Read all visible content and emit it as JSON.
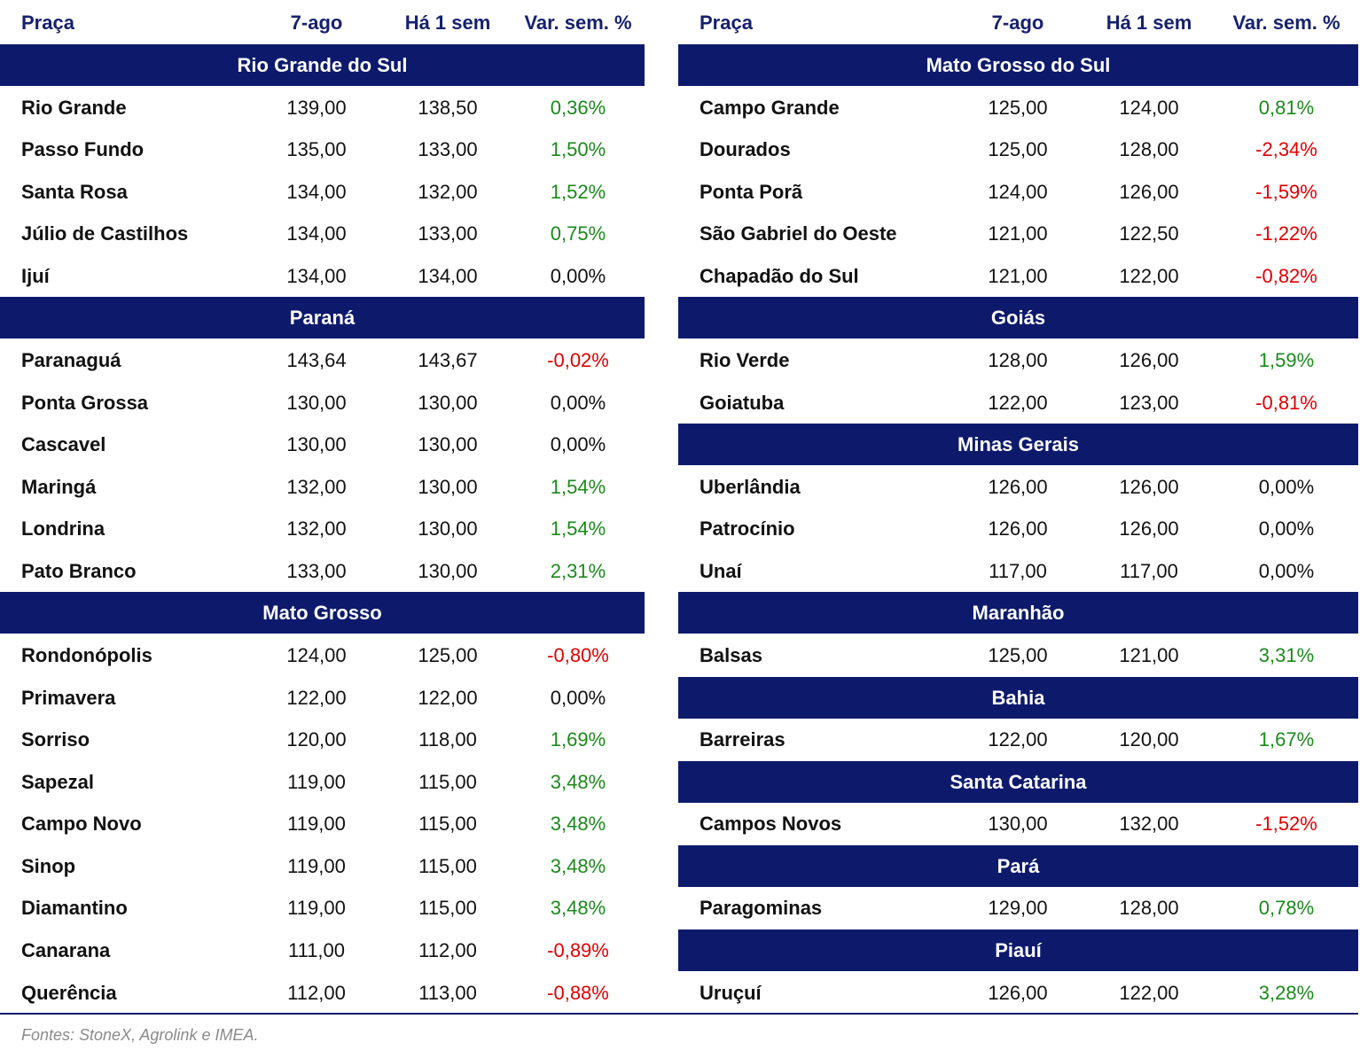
{
  "tables": [
    {
      "header": [
        "Praça",
        "7-ago",
        "Há 1 sem",
        "Var. sem. %"
      ],
      "sections": [
        {
          "title": "Rio Grande do Sul",
          "rows": [
            [
              "Rio Grande",
              "139,00",
              "138,50",
              "0,36%"
            ],
            [
              "Passo Fundo",
              "135,00",
              "133,00",
              "1,50%"
            ],
            [
              "Santa Rosa",
              "134,00",
              "132,00",
              "1,52%"
            ],
            [
              "Júlio de Castilhos",
              "134,00",
              "133,00",
              "0,75%"
            ],
            [
              "Ijuí",
              "134,00",
              "134,00",
              "0,00%"
            ]
          ]
        },
        {
          "title": "Paraná",
          "rows": [
            [
              "Paranaguá",
              "143,64",
              "143,67",
              "-0,02%"
            ],
            [
              "Ponta Grossa",
              "130,00",
              "130,00",
              "0,00%"
            ],
            [
              "Cascavel",
              "130,00",
              "130,00",
              "0,00%"
            ],
            [
              "Maringá",
              "132,00",
              "130,00",
              "1,54%"
            ],
            [
              "Londrina",
              "132,00",
              "130,00",
              "1,54%"
            ],
            [
              "Pato Branco",
              "133,00",
              "130,00",
              "2,31%"
            ]
          ]
        },
        {
          "title": "Mato Grosso",
          "rows": [
            [
              "Rondonópolis",
              "124,00",
              "125,00",
              "-0,80%"
            ],
            [
              "Primavera",
              "122,00",
              "122,00",
              "0,00%"
            ],
            [
              "Sorriso",
              "120,00",
              "118,00",
              "1,69%"
            ],
            [
              "Sapezal",
              "119,00",
              "115,00",
              "3,48%"
            ],
            [
              "Campo Novo",
              "119,00",
              "115,00",
              "3,48%"
            ],
            [
              "Sinop",
              "119,00",
              "115,00",
              "3,48%"
            ],
            [
              "Diamantino",
              "119,00",
              "115,00",
              "3,48%"
            ],
            [
              "Canarana",
              "111,00",
              "112,00",
              "-0,89%"
            ],
            [
              "Querência",
              "112,00",
              "113,00",
              "-0,88%"
            ]
          ]
        }
      ]
    },
    {
      "header": [
        "Praça",
        "7-ago",
        "Há 1 sem",
        "Var. sem. %"
      ],
      "sections": [
        {
          "title": "Mato Grosso do Sul",
          "rows": [
            [
              "Campo Grande",
              "125,00",
              "124,00",
              "0,81%"
            ],
            [
              "Dourados",
              "125,00",
              "128,00",
              "-2,34%"
            ],
            [
              "Ponta Porã",
              "124,00",
              "126,00",
              "-1,59%"
            ],
            [
              "São Gabriel do Oeste",
              "121,00",
              "122,50",
              "-1,22%"
            ],
            [
              "Chapadão do Sul",
              "121,00",
              "122,00",
              "-0,82%"
            ]
          ]
        },
        {
          "title": "Goiás",
          "rows": [
            [
              "Rio Verde",
              "128,00",
              "126,00",
              "1,59%"
            ],
            [
              "Goiatuba",
              "122,00",
              "123,00",
              "-0,81%"
            ]
          ]
        },
        {
          "title": "Minas Gerais",
          "rows": [
            [
              "Uberlândia",
              "126,00",
              "126,00",
              "0,00%"
            ],
            [
              "Patrocínio",
              "126,00",
              "126,00",
              "0,00%"
            ],
            [
              "Unaí",
              "117,00",
              "117,00",
              "0,00%"
            ]
          ]
        },
        {
          "title": "Maranhão",
          "rows": [
            [
              "Balsas",
              "125,00",
              "121,00",
              "3,31%"
            ]
          ]
        },
        {
          "title": "Bahia",
          "rows": [
            [
              "Barreiras",
              "122,00",
              "120,00",
              "1,67%"
            ]
          ]
        },
        {
          "title": "Santa Catarina",
          "rows": [
            [
              "Campos Novos",
              "130,00",
              "132,00",
              "-1,52%"
            ]
          ]
        },
        {
          "title": "Pará",
          "rows": [
            [
              "Paragominas",
              "129,00",
              "128,00",
              "0,78%"
            ]
          ]
        },
        {
          "title": "Piauí",
          "rows": [
            [
              "Uruçuí",
              "126,00",
              "122,00",
              "3,28%"
            ]
          ]
        }
      ]
    }
  ],
  "footnote": "Fontes: StoneX, Agrolink e IMEA."
}
